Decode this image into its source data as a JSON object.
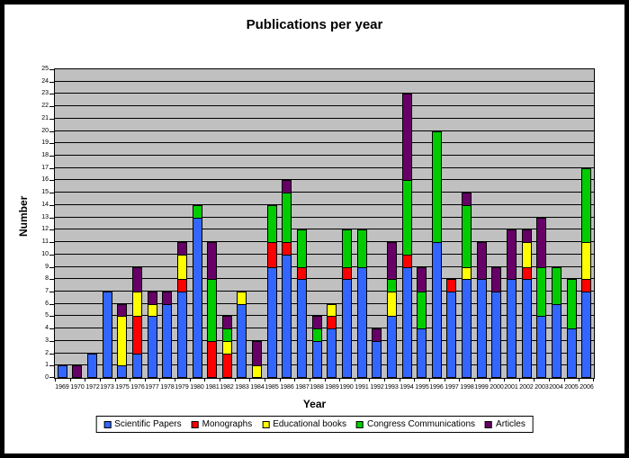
{
  "title": "Publications per year",
  "colors": {
    "page_bg": "#FFFFFF",
    "frame_border": "#000000",
    "plot_bg": "#C0C0C0",
    "gridline": "#000000",
    "scientific_papers": "#3366FF",
    "monographs": "#FF0000",
    "educational_books": "#FFFF00",
    "congress_communications": "#00CC00",
    "articles": "#660066"
  },
  "chart_data": {
    "type": "bar",
    "stacked": true,
    "title": "Publications per year",
    "xlabel": "Year",
    "ylabel": "Number",
    "ylim": [
      0,
      25
    ],
    "y_tick_step": 1,
    "grid": true,
    "plot_bg": "#C0C0C0",
    "legend_position": "bottom",
    "categories": [
      "1969",
      "1970",
      "1972",
      "1973",
      "1975",
      "1976",
      "1977",
      "1978",
      "1979",
      "1980",
      "1981",
      "1982",
      "1983",
      "1984",
      "1985",
      "1986",
      "1987",
      "1988",
      "1989",
      "1990",
      "1991",
      "1992",
      "1993",
      "1994",
      "1995",
      "1996",
      "1997",
      "1998",
      "1999",
      "2000",
      "2001",
      "2002",
      "2003",
      "2004",
      "2005",
      "2006"
    ],
    "series": [
      {
        "name": "Scientific Papers",
        "color": "#3366FF",
        "values": [
          1,
          0,
          2,
          7,
          1,
          2,
          5,
          6,
          7,
          13,
          0,
          0,
          6,
          0,
          9,
          10,
          8,
          3,
          4,
          8,
          9,
          3,
          5,
          9,
          4,
          11,
          7,
          8,
          8,
          7,
          8,
          8,
          5,
          6,
          4,
          7
        ]
      },
      {
        "name": "Monographs",
        "color": "#FF0000",
        "values": [
          0,
          0,
          0,
          0,
          0,
          3,
          0,
          0,
          1,
          0,
          3,
          2,
          0,
          0,
          2,
          1,
          1,
          0,
          1,
          1,
          0,
          0,
          0,
          1,
          0,
          0,
          1,
          0,
          0,
          0,
          0,
          1,
          0,
          0,
          0,
          1
        ]
      },
      {
        "name": "Educational books",
        "color": "#FFFF00",
        "values": [
          0,
          0,
          0,
          0,
          4,
          2,
          1,
          0,
          2,
          0,
          0,
          1,
          1,
          1,
          0,
          0,
          0,
          0,
          1,
          0,
          0,
          0,
          2,
          0,
          0,
          0,
          0,
          1,
          0,
          0,
          0,
          2,
          0,
          0,
          0,
          3
        ]
      },
      {
        "name": "Congress Communications",
        "color": "#00CC00",
        "values": [
          0,
          0,
          0,
          0,
          0,
          0,
          0,
          0,
          0,
          1,
          5,
          1,
          0,
          0,
          3,
          4,
          3,
          1,
          0,
          3,
          3,
          0,
          1,
          6,
          3,
          9,
          0,
          5,
          0,
          0,
          0,
          0,
          4,
          3,
          4,
          6
        ]
      },
      {
        "name": "Articles",
        "color": "#660066",
        "values": [
          0,
          1,
          0,
          0,
          1,
          2,
          1,
          1,
          1,
          0,
          3,
          1,
          0,
          2,
          0,
          1,
          0,
          1,
          0,
          0,
          0,
          1,
          3,
          7,
          2,
          0,
          0,
          1,
          3,
          2,
          4,
          1,
          4,
          0,
          0,
          0
        ]
      }
    ]
  }
}
